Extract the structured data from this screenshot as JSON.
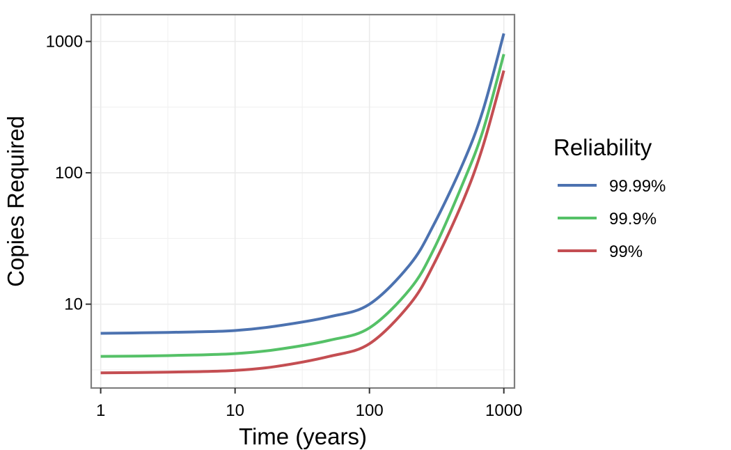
{
  "chart_data": {
    "type": "line",
    "xlabel": "Time (years)",
    "ylabel": "Copies Required",
    "x_scale": "log",
    "y_scale": "log",
    "xlim": [
      0.85,
      1200
    ],
    "ylim": [
      2.3,
      1600
    ],
    "x_ticks": [
      1,
      10,
      100,
      1000
    ],
    "x_tick_labels": [
      "1",
      "10",
      "100",
      "1000"
    ],
    "y_ticks": [
      10,
      100,
      1000
    ],
    "y_tick_labels": [
      "10",
      "100",
      "1000"
    ],
    "grid": true,
    "legend": {
      "title": "Reliability",
      "position": "right"
    },
    "series": [
      {
        "name": "99.99%",
        "color": "#4c72b0",
        "x": [
          1,
          2,
          5,
          10,
          20,
          50,
          100,
          200,
          300,
          500,
          700,
          1000
        ],
        "y": [
          6,
          6.05,
          6.15,
          6.3,
          6.8,
          8,
          10,
          20,
          40,
          120,
          300,
          1150
        ]
      },
      {
        "name": "99.9%",
        "color": "#55c167",
        "x": [
          1,
          2,
          5,
          10,
          20,
          50,
          100,
          200,
          300,
          500,
          700,
          1000
        ],
        "y": [
          4,
          4.03,
          4.1,
          4.2,
          4.5,
          5.3,
          6.6,
          13,
          26,
          85,
          210,
          800
        ]
      },
      {
        "name": "99%",
        "color": "#c44e52",
        "x": [
          1,
          2,
          5,
          10,
          20,
          50,
          100,
          200,
          300,
          500,
          700,
          1000
        ],
        "y": [
          3,
          3.02,
          3.06,
          3.13,
          3.35,
          4,
          5,
          10,
          20,
          62,
          160,
          600
        ]
      }
    ]
  }
}
